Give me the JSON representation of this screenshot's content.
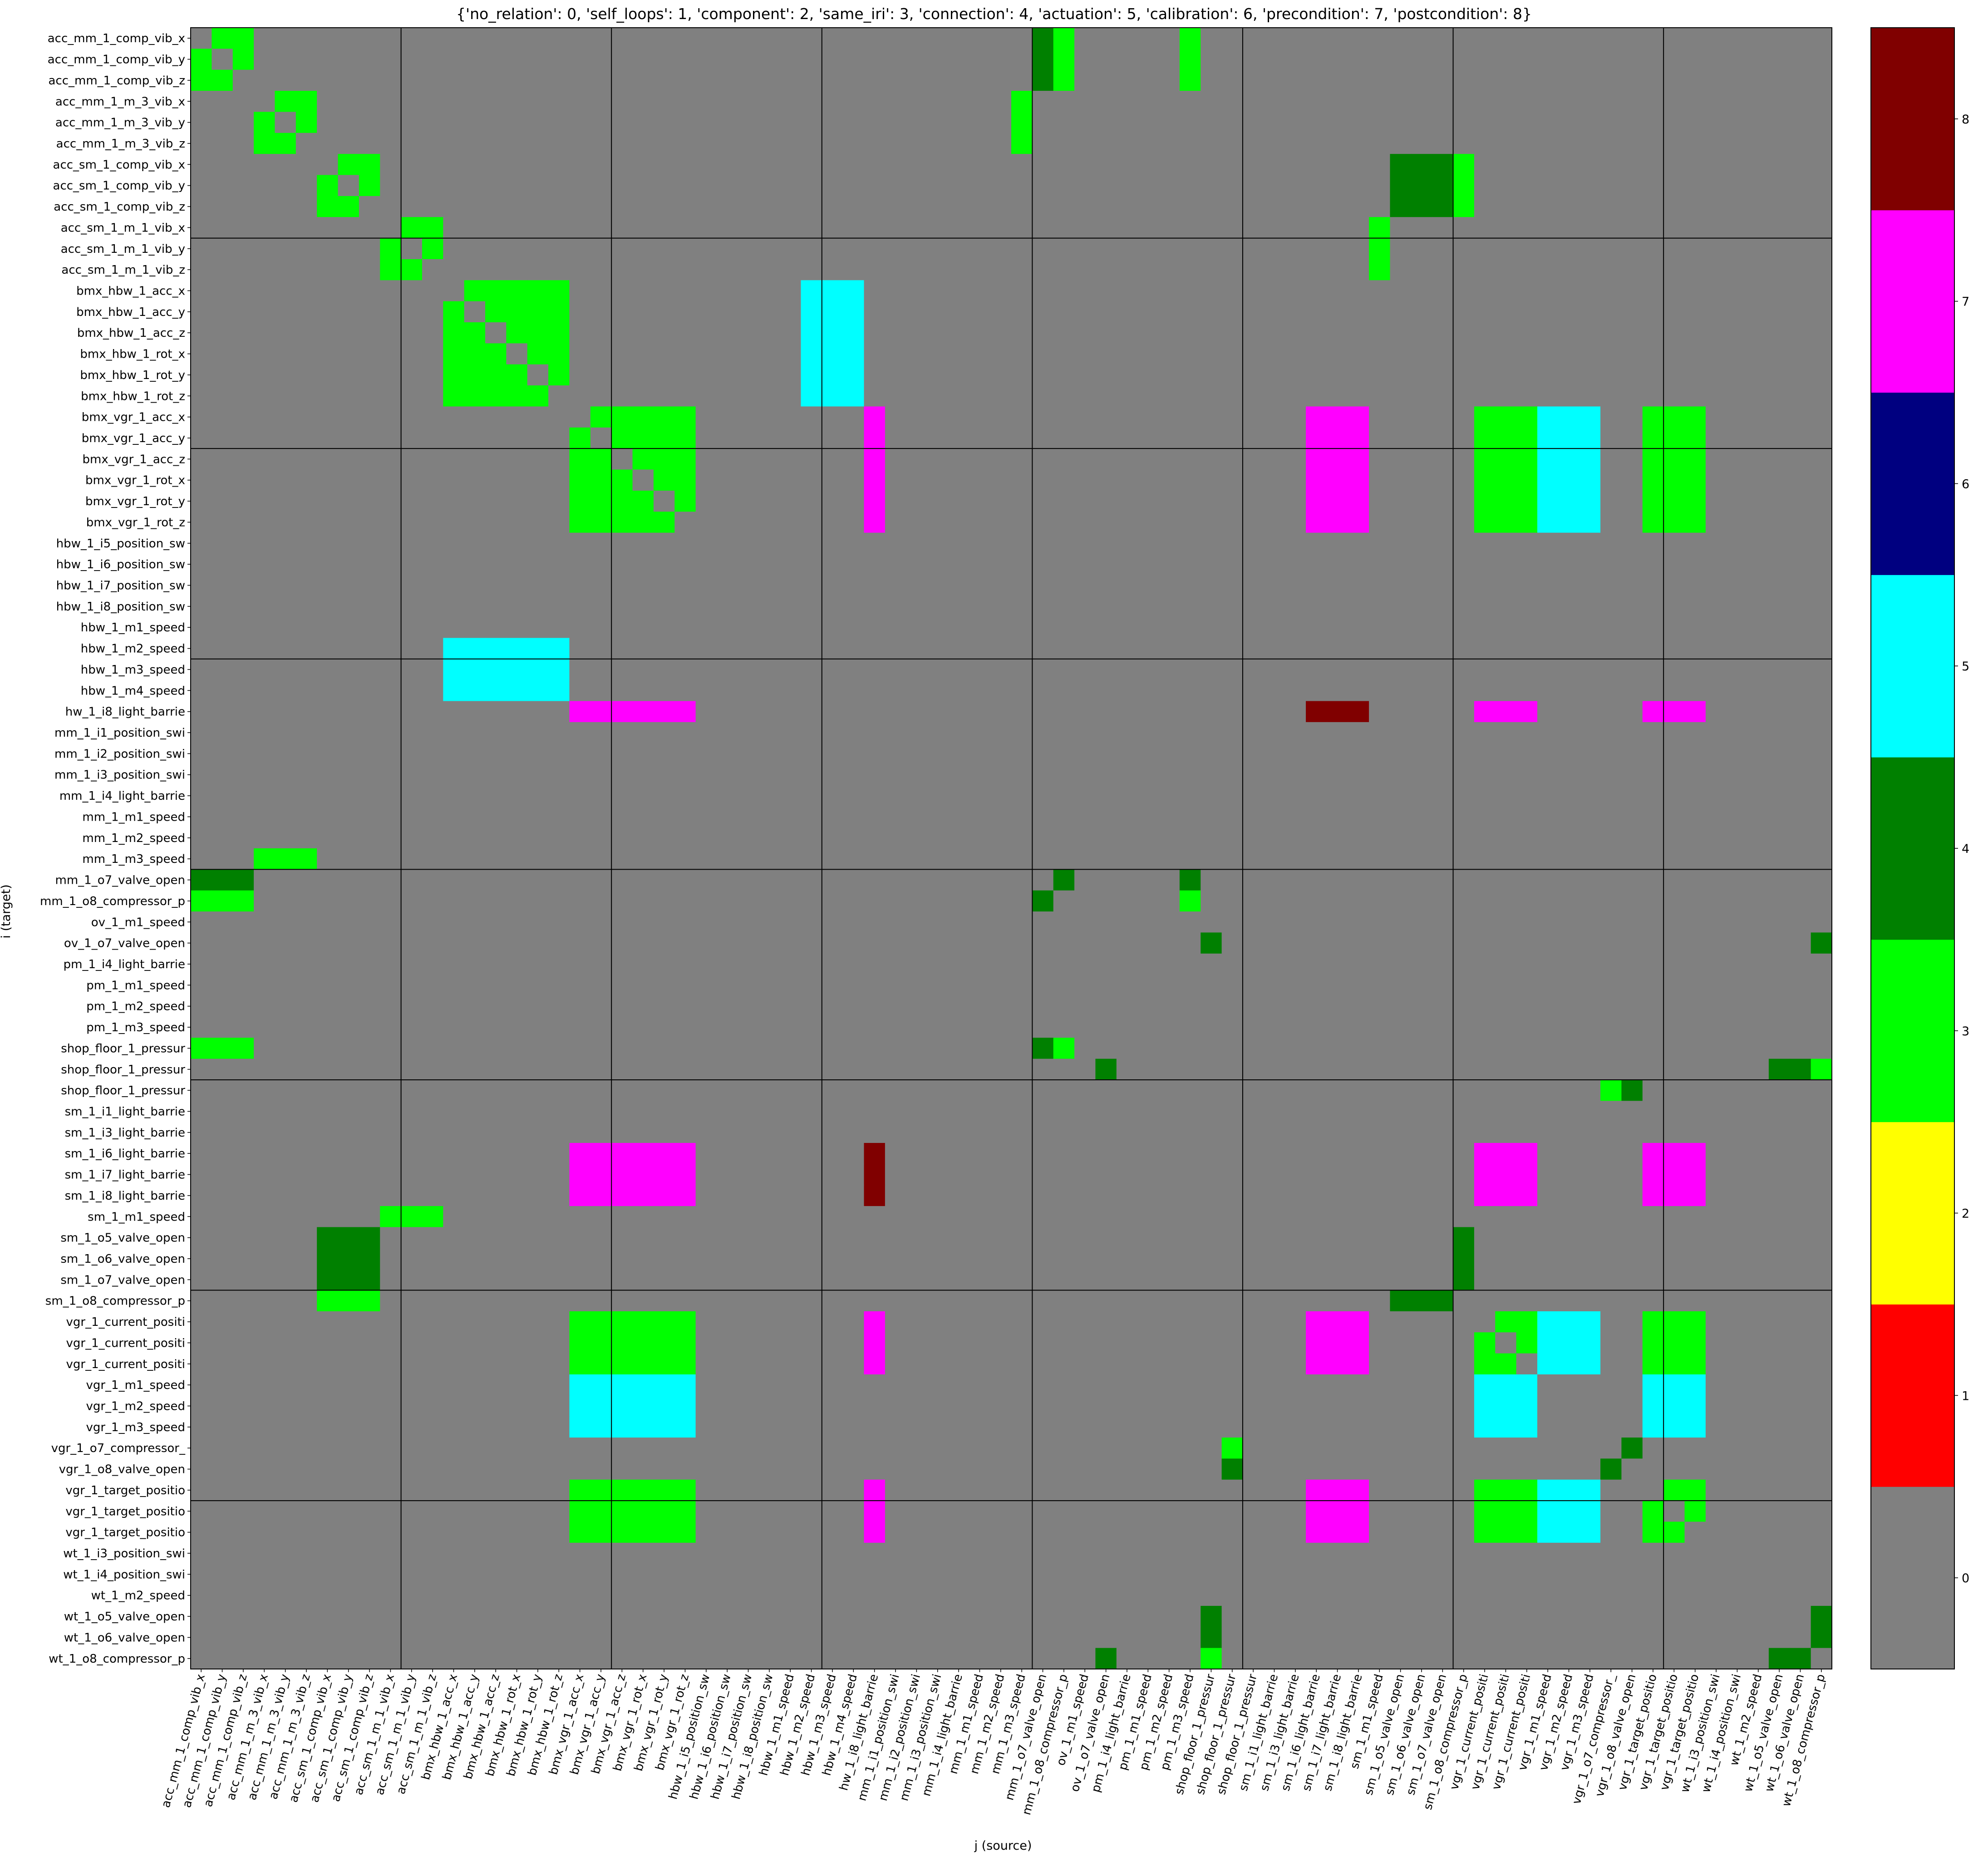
{
  "chart_data": {
    "type": "heatmap",
    "title": "{'no_relation': 0, 'self_loops': 1, 'component': 2, 'same_iri': 3, 'connection': 4, 'actuation': 5, 'calibration': 6, 'precondition': 7, 'postcondition': 8}",
    "xlabel": "j (source)",
    "ylabel": "i (target)",
    "labels": [
      "acc_mm_1_comp_vib_x",
      "acc_mm_1_comp_vib_y",
      "acc_mm_1_comp_vib_z",
      "acc_mm_1_m_3_vib_x",
      "acc_mm_1_m_3_vib_y",
      "acc_mm_1_m_3_vib_z",
      "acc_sm_1_comp_vib_x",
      "acc_sm_1_comp_vib_y",
      "acc_sm_1_comp_vib_z",
      "acc_sm_1_m_1_vib_x",
      "acc_sm_1_m_1_vib_y",
      "acc_sm_1_m_1_vib_z",
      "bmx_hbw_1_acc_x",
      "bmx_hbw_1_acc_y",
      "bmx_hbw_1_acc_z",
      "bmx_hbw_1_rot_x",
      "bmx_hbw_1_rot_y",
      "bmx_hbw_1_rot_z",
      "bmx_vgr_1_acc_x",
      "bmx_vgr_1_acc_y",
      "bmx_vgr_1_acc_z",
      "bmx_vgr_1_rot_x",
      "bmx_vgr_1_rot_y",
      "bmx_vgr_1_rot_z",
      "hbw_1_i5_position_sw",
      "hbw_1_i6_position_sw",
      "hbw_1_i7_position_sw",
      "hbw_1_i8_position_sw",
      "hbw_1_m1_speed",
      "hbw_1_m2_speed",
      "hbw_1_m3_speed",
      "hbw_1_m4_speed",
      "hw_1_i8_light_barrie",
      "mm_1_i1_position_swi",
      "mm_1_i2_position_swi",
      "mm_1_i3_position_swi",
      "mm_1_i4_light_barrie",
      "mm_1_m1_speed",
      "mm_1_m2_speed",
      "mm_1_m3_speed",
      "mm_1_o7_valve_open",
      "mm_1_o8_compressor_p",
      "ov_1_m1_speed",
      "ov_1_o7_valve_open",
      "pm_1_i4_light_barrie",
      "pm_1_m1_speed",
      "pm_1_m2_speed",
      "pm_1_m3_speed",
      "shop_floor_1_pressur",
      "shop_floor_1_pressur",
      "shop_floor_1_pressur",
      "sm_1_i1_light_barrie",
      "sm_1_i3_light_barrie",
      "sm_1_i6_light_barrie",
      "sm_1_i7_light_barrie",
      "sm_1_i8_light_barrie",
      "sm_1_m1_speed",
      "sm_1_o5_valve_open",
      "sm_1_o6_valve_open",
      "sm_1_o7_valve_open",
      "sm_1_o8_compressor_p",
      "vgr_1_current_positi",
      "vgr_1_current_positi",
      "vgr_1_current_positi",
      "vgr_1_m1_speed",
      "vgr_1_m2_speed",
      "vgr_1_m3_speed",
      "vgr_1_o7_compressor_",
      "vgr_1_o8_valve_open",
      "vgr_1_target_positio",
      "vgr_1_target_positio",
      "vgr_1_target_positio",
      "wt_1_i3_position_swi",
      "wt_1_i4_position_swi",
      "wt_1_m2_speed",
      "wt_1_o5_valve_open",
      "wt_1_o6_valve_open",
      "wt_1_o8_compressor_p"
    ],
    "cells": [
      {
        "value": 3,
        "rows": [
          0,
          2
        ],
        "cols": [
          0,
          2
        ],
        "diagonal": 0
      },
      {
        "value": 3,
        "rows": [
          3,
          5
        ],
        "cols": [
          3,
          5
        ],
        "diagonal": 0
      },
      {
        "value": 3,
        "rows": [
          6,
          8
        ],
        "cols": [
          6,
          8
        ],
        "diagonal": 0
      },
      {
        "value": 3,
        "rows": [
          9,
          11
        ],
        "cols": [
          9,
          11
        ],
        "diagonal": 0
      },
      {
        "value": 3,
        "rows": [
          12,
          17
        ],
        "cols": [
          12,
          17
        ],
        "diagonal": 0
      },
      {
        "value": 3,
        "rows": [
          18,
          23
        ],
        "cols": [
          18,
          23
        ],
        "diagonal": 0
      },
      {
        "value": 3,
        "rows": [
          61,
          63
        ],
        "cols": [
          61,
          63
        ],
        "diagonal": 0
      },
      {
        "value": 3,
        "rows": [
          69,
          71
        ],
        "cols": [
          69,
          71
        ],
        "diagonal": 0
      },
      {
        "value": 4,
        "rows": [
          0,
          2
        ],
        "cols": [
          40,
          40
        ]
      },
      {
        "value": 3,
        "rows": [
          0,
          2
        ],
        "cols": [
          41,
          41
        ]
      },
      {
        "value": 3,
        "rows": [
          0,
          2
        ],
        "cols": [
          47,
          47
        ]
      },
      {
        "value": 3,
        "rows": [
          3,
          5
        ],
        "cols": [
          39,
          39
        ]
      },
      {
        "value": 4,
        "rows": [
          6,
          8
        ],
        "cols": [
          57,
          59
        ]
      },
      {
        "value": 3,
        "rows": [
          6,
          8
        ],
        "cols": [
          60,
          60
        ]
      },
      {
        "value": 3,
        "rows": [
          9,
          11
        ],
        "cols": [
          56,
          56
        ]
      },
      {
        "value": 5,
        "rows": [
          12,
          17
        ],
        "cols": [
          29,
          31
        ]
      },
      {
        "value": 7,
        "rows": [
          18,
          23
        ],
        "cols": [
          32,
          32
        ]
      },
      {
        "value": 7,
        "rows": [
          18,
          23
        ],
        "cols": [
          53,
          55
        ]
      },
      {
        "value": 3,
        "rows": [
          18,
          23
        ],
        "cols": [
          61,
          63
        ]
      },
      {
        "value": 5,
        "rows": [
          18,
          23
        ],
        "cols": [
          64,
          66
        ]
      },
      {
        "value": 3,
        "rows": [
          18,
          23
        ],
        "cols": [
          69,
          71
        ]
      },
      {
        "value": 5,
        "rows": [
          29,
          31
        ],
        "cols": [
          12,
          17
        ]
      },
      {
        "value": 7,
        "rows": [
          32,
          32
        ],
        "cols": [
          18,
          23
        ]
      },
      {
        "value": 8,
        "rows": [
          32,
          32
        ],
        "cols": [
          53,
          55
        ]
      },
      {
        "value": 7,
        "rows": [
          32,
          32
        ],
        "cols": [
          61,
          63
        ]
      },
      {
        "value": 7,
        "rows": [
          32,
          32
        ],
        "cols": [
          69,
          71
        ]
      },
      {
        "value": 3,
        "rows": [
          39,
          39
        ],
        "cols": [
          3,
          5
        ]
      },
      {
        "value": 4,
        "rows": [
          40,
          40
        ],
        "cols": [
          0,
          2
        ]
      },
      {
        "value": 4,
        "rows": [
          40,
          40
        ],
        "cols": [
          41,
          41
        ]
      },
      {
        "value": 4,
        "rows": [
          40,
          40
        ],
        "cols": [
          47,
          47
        ]
      },
      {
        "value": 3,
        "rows": [
          41,
          41
        ],
        "cols": [
          0,
          2
        ]
      },
      {
        "value": 4,
        "rows": [
          41,
          41
        ],
        "cols": [
          40,
          40
        ]
      },
      {
        "value": 3,
        "rows": [
          41,
          41
        ],
        "cols": [
          47,
          47
        ]
      },
      {
        "value": 4,
        "rows": [
          43,
          43
        ],
        "cols": [
          48,
          48
        ]
      },
      {
        "value": 4,
        "rows": [
          43,
          43
        ],
        "cols": [
          77,
          77
        ]
      },
      {
        "value": 3,
        "rows": [
          48,
          48
        ],
        "cols": [
          0,
          2
        ]
      },
      {
        "value": 4,
        "rows": [
          48,
          48
        ],
        "cols": [
          40,
          40
        ]
      },
      {
        "value": 3,
        "rows": [
          48,
          48
        ],
        "cols": [
          41,
          41
        ]
      },
      {
        "value": 4,
        "rows": [
          49,
          49
        ],
        "cols": [
          43,
          43
        ]
      },
      {
        "value": 4,
        "rows": [
          49,
          49
        ],
        "cols": [
          75,
          76
        ]
      },
      {
        "value": 3,
        "rows": [
          49,
          49
        ],
        "cols": [
          77,
          77
        ]
      },
      {
        "value": 3,
        "rows": [
          50,
          50
        ],
        "cols": [
          67,
          67
        ]
      },
      {
        "value": 4,
        "rows": [
          50,
          50
        ],
        "cols": [
          68,
          68
        ]
      },
      {
        "value": 7,
        "rows": [
          53,
          55
        ],
        "cols": [
          18,
          23
        ]
      },
      {
        "value": 8,
        "rows": [
          53,
          55
        ],
        "cols": [
          32,
          32
        ]
      },
      {
        "value": 7,
        "rows": [
          53,
          55
        ],
        "cols": [
          61,
          63
        ]
      },
      {
        "value": 7,
        "rows": [
          53,
          55
        ],
        "cols": [
          69,
          71
        ]
      },
      {
        "value": 3,
        "rows": [
          56,
          56
        ],
        "cols": [
          9,
          11
        ]
      },
      {
        "value": 4,
        "rows": [
          57,
          59
        ],
        "cols": [
          6,
          8
        ]
      },
      {
        "value": 4,
        "rows": [
          57,
          59
        ],
        "cols": [
          60,
          60
        ]
      },
      {
        "value": 3,
        "rows": [
          60,
          60
        ],
        "cols": [
          6,
          8
        ]
      },
      {
        "value": 4,
        "rows": [
          60,
          60
        ],
        "cols": [
          57,
          59
        ]
      },
      {
        "value": 3,
        "rows": [
          61,
          63
        ],
        "cols": [
          18,
          23
        ]
      },
      {
        "value": 7,
        "rows": [
          61,
          63
        ],
        "cols": [
          32,
          32
        ]
      },
      {
        "value": 7,
        "rows": [
          61,
          63
        ],
        "cols": [
          53,
          55
        ]
      },
      {
        "value": 5,
        "rows": [
          61,
          63
        ],
        "cols": [
          64,
          66
        ]
      },
      {
        "value": 3,
        "rows": [
          61,
          63
        ],
        "cols": [
          69,
          71
        ]
      },
      {
        "value": 5,
        "rows": [
          64,
          66
        ],
        "cols": [
          18,
          23
        ]
      },
      {
        "value": 5,
        "rows": [
          64,
          66
        ],
        "cols": [
          61,
          63
        ]
      },
      {
        "value": 5,
        "rows": [
          64,
          66
        ],
        "cols": [
          69,
          71
        ]
      },
      {
        "value": 3,
        "rows": [
          67,
          67
        ],
        "cols": [
          49,
          49
        ]
      },
      {
        "value": 4,
        "rows": [
          67,
          67
        ],
        "cols": [
          68,
          68
        ]
      },
      {
        "value": 4,
        "rows": [
          68,
          68
        ],
        "cols": [
          49,
          49
        ]
      },
      {
        "value": 4,
        "rows": [
          68,
          68
        ],
        "cols": [
          67,
          67
        ]
      },
      {
        "value": 3,
        "rows": [
          69,
          71
        ],
        "cols": [
          18,
          23
        ]
      },
      {
        "value": 7,
        "rows": [
          69,
          71
        ],
        "cols": [
          32,
          32
        ]
      },
      {
        "value": 7,
        "rows": [
          69,
          71
        ],
        "cols": [
          53,
          55
        ]
      },
      {
        "value": 3,
        "rows": [
          69,
          71
        ],
        "cols": [
          61,
          63
        ]
      },
      {
        "value": 5,
        "rows": [
          69,
          71
        ],
        "cols": [
          64,
          66
        ]
      },
      {
        "value": 4,
        "rows": [
          75,
          76
        ],
        "cols": [
          48,
          48
        ]
      },
      {
        "value": 4,
        "rows": [
          75,
          76
        ],
        "cols": [
          77,
          77
        ]
      },
      {
        "value": 4,
        "rows": [
          77,
          77
        ],
        "cols": [
          43,
          43
        ]
      },
      {
        "value": 3,
        "rows": [
          77,
          77
        ],
        "cols": [
          48,
          48
        ]
      },
      {
        "value": 4,
        "rows": [
          77,
          77
        ],
        "cols": [
          75,
          76
        ]
      }
    ],
    "separators": [
      10,
      20,
      30,
      40,
      50,
      60,
      70
    ],
    "colorbar": {
      "colors": [
        "#808080",
        "#ff0000",
        "#ffff00",
        "#00ff00",
        "#008000",
        "#00ffff",
        "#000080",
        "#ff00ff",
        "#800000"
      ],
      "ticks": [
        0,
        1,
        2,
        3,
        4,
        5,
        6,
        7,
        8
      ],
      "range": [
        -0.5,
        8.5
      ]
    },
    "diagonal_value": 0,
    "grid": false
  }
}
